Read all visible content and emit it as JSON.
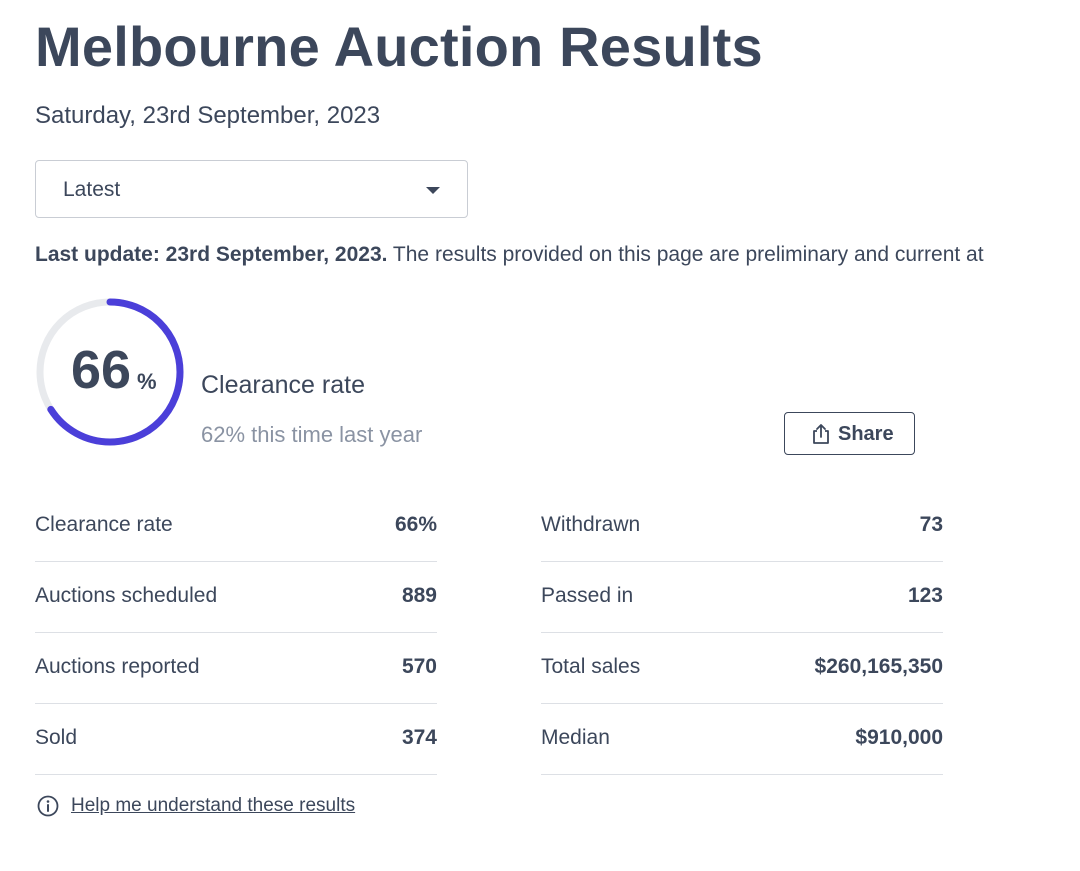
{
  "header": {
    "title": "Melbourne Auction Results",
    "date": "Saturday, 23rd September, 2023"
  },
  "period_select": {
    "selected": "Latest",
    "icon": "chevron-down-icon"
  },
  "notice": {
    "bold": "Last update: 23rd September, 2023.",
    "text": " The results provided on this page are preliminary and current at"
  },
  "clearance": {
    "rate_number": "66",
    "rate_unit": "%",
    "rate_fraction": 0.66,
    "label": "Clearance rate",
    "last_year": "62% this time last year",
    "ring_color": "#4b3fd9",
    "track_color": "#e8eaed"
  },
  "share": {
    "label": "Share",
    "icon": "share-icon"
  },
  "stats": {
    "left": [
      {
        "label": "Clearance rate",
        "value": "66%"
      },
      {
        "label": "Auctions scheduled",
        "value": "889"
      },
      {
        "label": "Auctions reported",
        "value": "570"
      },
      {
        "label": "Sold",
        "value": "374"
      }
    ],
    "right": [
      {
        "label": "Withdrawn",
        "value": "73"
      },
      {
        "label": "Passed in",
        "value": "123"
      },
      {
        "label": "Total sales",
        "value": "$260,165,350"
      },
      {
        "label": "Median",
        "value": "$910,000"
      }
    ]
  },
  "help": {
    "label": "Help me understand these results",
    "icon": "info-icon"
  }
}
